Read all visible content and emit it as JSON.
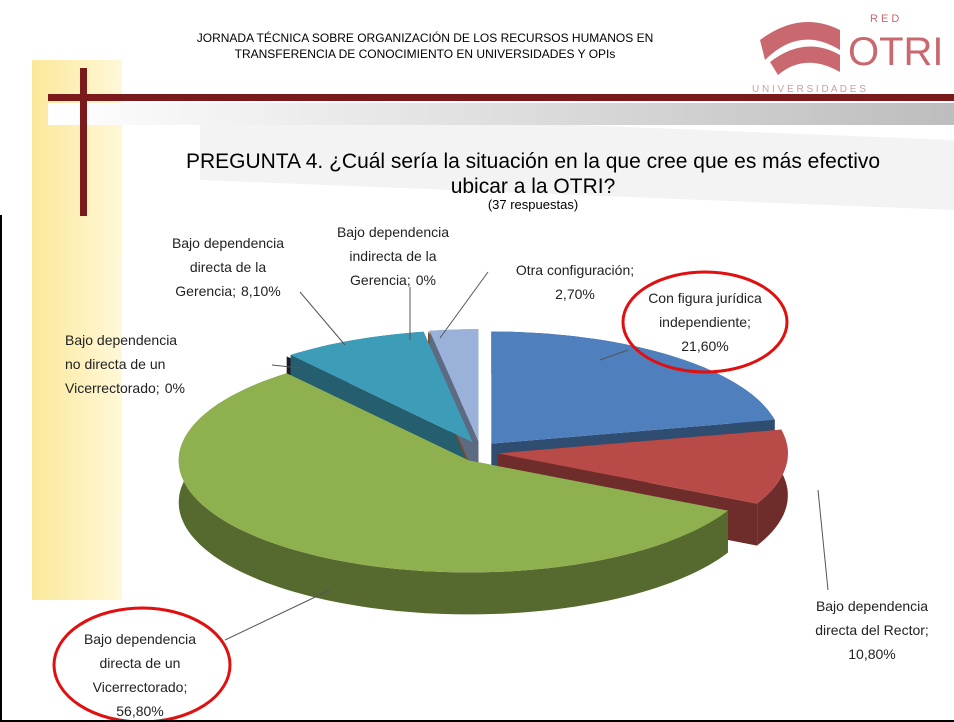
{
  "header": {
    "event": [
      "JORNADA TÉCNICA SOBRE ORGANIZACIÓN DE LOS RECURSOS HUMANOS EN",
      "TRANSFERENCIA DE CONOCIMIENTO EN UNIVERSIDADES Y OPIs"
    ],
    "logo": "OTRI",
    "logo_red": "R E D",
    "logo_sub": "U N I V E R S I D A D E S"
  },
  "chart_data": {
    "type": "pie",
    "title": [
      "PREGUNTA 4. ¿Cuál sería la situación en la que cree que es más efectivo",
      "ubicar a la OTRI?"
    ],
    "subtitle": "(37 respuestas)",
    "categories": [
      [
        "Con figura jurídica",
        "independiente;"
      ],
      [
        "Bajo dependencia",
        "directa del Rector;"
      ],
      [
        "Bajo dependencia",
        "directa de un",
        "Vicerrectorado;"
      ],
      [
        "Bajo dependencia",
        "no directa de un",
        "Vicerrectorado;"
      ],
      [
        "Bajo dependencia",
        "directa de la",
        "Gerencia;"
      ],
      [
        "Bajo dependencia",
        "indirecta de la",
        "Gerencia;"
      ],
      [
        "Otra configuración;"
      ]
    ],
    "values": [
      21.6,
      10.8,
      56.8,
      0,
      8.1,
      0,
      2.7
    ],
    "value_labels": [
      "21,60%",
      "10,80%",
      "56,80%",
      "0%",
      "8,10%",
      "0%",
      "2,70%"
    ],
    "colors": [
      "#4f7fbd",
      "#b84a47",
      "#8fb04f",
      "#2f2a44",
      "#3d9db8",
      "#e0782a",
      "#9ab1d9"
    ]
  }
}
